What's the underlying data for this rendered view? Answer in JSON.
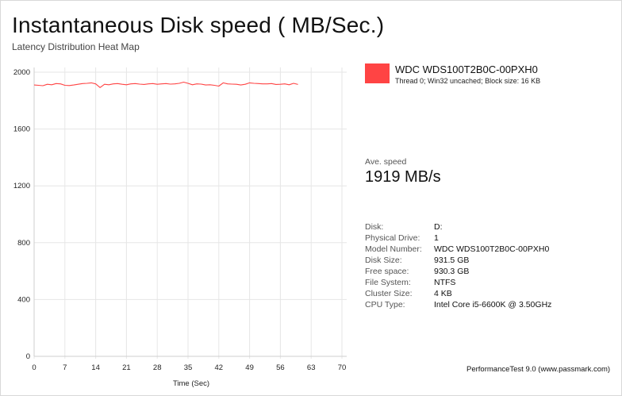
{
  "header": {
    "title": "Instantaneous Disk speed ( MB/Sec.)",
    "subtitle": "Latency Distribution Heat Map"
  },
  "legend": {
    "name": "WDC WDS100T2B0C-00PXH0",
    "detail": "Thread 0; Win32 uncached; Block size: 16 KB",
    "color": "#ff4444"
  },
  "average": {
    "label": "Ave. speed",
    "value": "1919 MB/s"
  },
  "info": [
    {
      "key": "Disk:",
      "value": "D:"
    },
    {
      "key": "Physical Drive:",
      "value": "1"
    },
    {
      "key": "Model Number:",
      "value": "WDC WDS100T2B0C-00PXH0"
    },
    {
      "key": "Disk Size:",
      "value": "931.5 GB"
    },
    {
      "key": "Free space:",
      "value": "930.3 GB"
    },
    {
      "key": "File System:",
      "value": "NTFS"
    },
    {
      "key": "Cluster Size:",
      "value": "4 KB"
    },
    {
      "key": "CPU Type:",
      "value": "Intel Core i5-6600K @ 3.50GHz"
    }
  ],
  "footer": "PerformanceTest 9.0 (www.passmark.com)",
  "chart_data": {
    "type": "line",
    "xlabel": "Time (Sec)",
    "ylabel": "",
    "xlim": [
      0,
      70
    ],
    "ylim": [
      0,
      2000
    ],
    "x_ticks": [
      0,
      7,
      14,
      21,
      28,
      35,
      42,
      49,
      56,
      63,
      70
    ],
    "y_ticks": [
      0,
      400,
      800,
      1200,
      1600,
      2000
    ],
    "grid": true,
    "line_color": "#ff4444",
    "series": [
      {
        "name": "WDC WDS100T2B0C-00PXH0",
        "x": [
          0,
          1,
          2,
          3,
          4,
          5,
          6,
          7,
          8,
          9,
          10,
          11,
          12,
          13,
          14,
          15,
          16,
          17,
          18,
          19,
          20,
          21,
          22,
          23,
          24,
          25,
          26,
          27,
          28,
          29,
          30,
          31,
          32,
          33,
          34,
          35,
          36,
          37,
          38,
          39,
          40,
          41,
          42,
          43,
          44,
          45,
          46,
          47,
          48,
          49,
          50,
          51,
          52,
          53,
          54,
          55,
          56,
          57,
          58,
          59,
          60
        ],
        "values": [
          1910,
          1908,
          1905,
          1915,
          1912,
          1920,
          1918,
          1908,
          1906,
          1910,
          1915,
          1920,
          1922,
          1925,
          1918,
          1892,
          1915,
          1912,
          1918,
          1920,
          1915,
          1912,
          1918,
          1920,
          1916,
          1914,
          1918,
          1920,
          1915,
          1918,
          1920,
          1916,
          1918,
          1922,
          1930,
          1922,
          1912,
          1918,
          1916,
          1910,
          1912,
          1908,
          1902,
          1925,
          1918,
          1916,
          1915,
          1910,
          1915,
          1925,
          1922,
          1920,
          1918,
          1918,
          1920,
          1914,
          1915,
          1918,
          1912,
          1922,
          1914
        ]
      }
    ]
  }
}
